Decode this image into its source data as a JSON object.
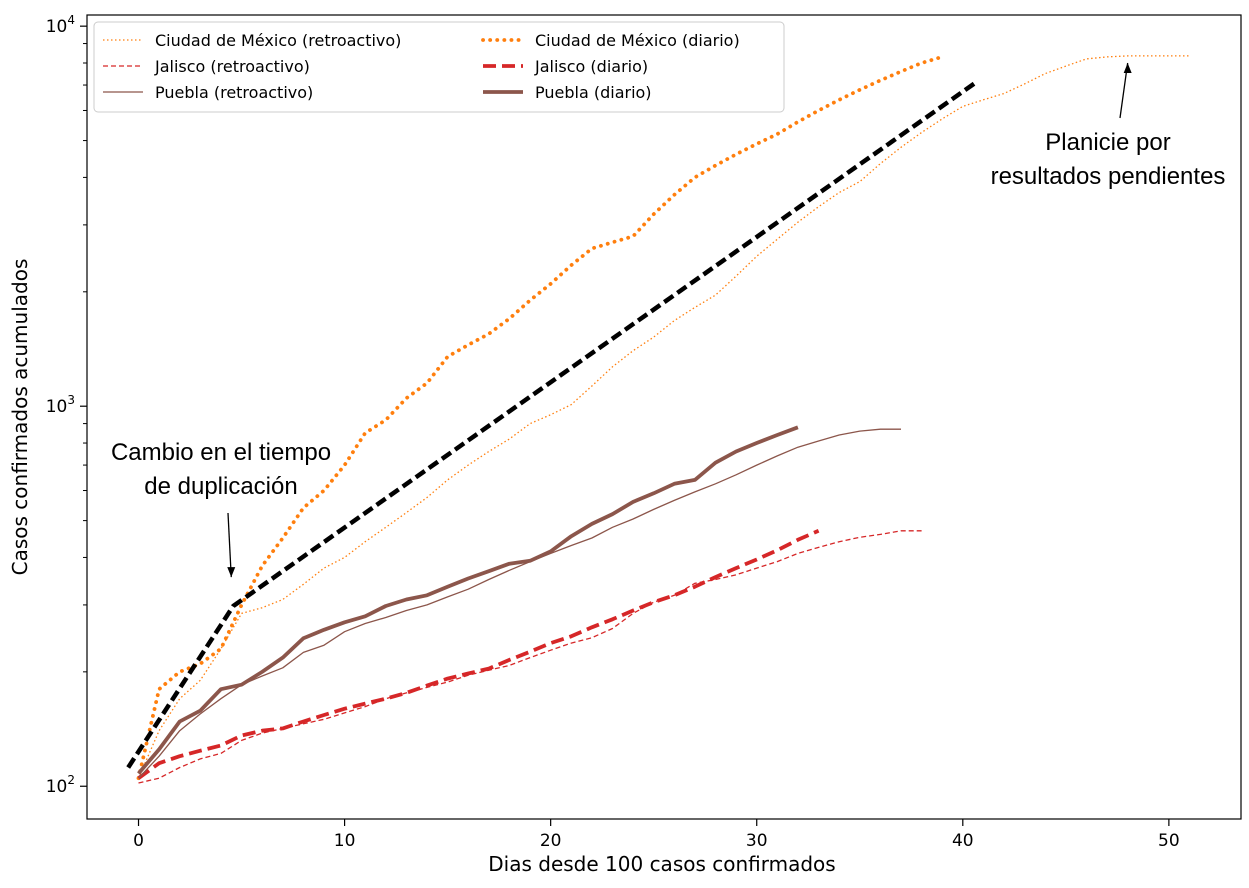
{
  "chart_data": {
    "type": "line",
    "xlabel": "Dias desde 100 casos confirmados",
    "ylabel": "Casos confirmados acumulados",
    "yscale": "log",
    "xlim": [
      -2.5,
      53.5
    ],
    "ylim": [
      82,
      10700
    ],
    "x_ticks": [
      0,
      10,
      20,
      30,
      40,
      50
    ],
    "y_ticks": [
      {
        "value": 100,
        "base": "10",
        "exp": "2"
      },
      {
        "value": 1000,
        "base": "10",
        "exp": "3"
      },
      {
        "value": 10000,
        "base": "10",
        "exp": "4"
      }
    ],
    "legend_position": "top-left",
    "series": [
      {
        "name": "Ciudad de México (retroactivo)",
        "color": "#ff7f0e",
        "style": "dotted",
        "weight": "thin",
        "x": [
          0,
          1,
          2,
          3,
          4,
          5,
          6,
          7,
          8,
          9,
          10,
          11,
          12,
          13,
          14,
          15,
          16,
          17,
          18,
          19,
          20,
          21,
          22,
          23,
          24,
          25,
          26,
          27,
          28,
          29,
          30,
          31,
          32,
          33,
          34,
          35,
          36,
          37,
          38,
          39,
          40,
          41,
          42,
          43,
          44,
          45,
          46,
          47,
          48,
          49,
          50,
          51
        ],
        "y": [
          105,
          140,
          170,
          190,
          230,
          285,
          295,
          310,
          340,
          375,
          400,
          440,
          480,
          525,
          575,
          640,
          700,
          760,
          820,
          900,
          950,
          1010,
          1130,
          1270,
          1400,
          1520,
          1680,
          1820,
          1960,
          2200,
          2480,
          2750,
          3050,
          3350,
          3650,
          3900,
          4350,
          4800,
          5250,
          5700,
          6150,
          6400,
          6650,
          7050,
          7500,
          7850,
          8200,
          8300,
          8350,
          8350,
          8350,
          8350
        ]
      },
      {
        "name": "Ciudad de México (diario)",
        "color": "#ff7f0e",
        "style": "dotted",
        "weight": "thick",
        "x": [
          0,
          1,
          2,
          3,
          4,
          5,
          6,
          7,
          8,
          9,
          10,
          11,
          12,
          13,
          14,
          15,
          16,
          17,
          18,
          19,
          20,
          21,
          22,
          23,
          24,
          25,
          26,
          27,
          28,
          29,
          30,
          31,
          32,
          33,
          34,
          35,
          36,
          37,
          38,
          39
        ],
        "y": [
          105,
          180,
          200,
          210,
          230,
          300,
          380,
          450,
          540,
          600,
          700,
          850,
          920,
          1050,
          1150,
          1350,
          1450,
          1550,
          1700,
          1900,
          2100,
          2350,
          2600,
          2700,
          2800,
          3200,
          3600,
          4000,
          4300,
          4600,
          4900,
          5200,
          5600,
          6000,
          6400,
          6800,
          7200,
          7600,
          8000,
          8300
        ]
      },
      {
        "name": "Jalisco (retroactivo)",
        "color": "#d62728",
        "style": "dashed",
        "weight": "thin",
        "x": [
          0,
          1,
          2,
          3,
          4,
          5,
          6,
          7,
          8,
          9,
          10,
          11,
          12,
          13,
          14,
          15,
          16,
          17,
          18,
          19,
          20,
          21,
          22,
          23,
          24,
          25,
          26,
          27,
          28,
          29,
          30,
          31,
          32,
          33,
          34,
          35,
          36,
          37,
          38
        ],
        "y": [
          102,
          105,
          112,
          118,
          122,
          132,
          138,
          142,
          146,
          150,
          156,
          162,
          170,
          176,
          182,
          188,
          196,
          202,
          208,
          218,
          228,
          238,
          246,
          260,
          285,
          305,
          318,
          342,
          350,
          360,
          375,
          390,
          410,
          425,
          440,
          452,
          460,
          470,
          470
        ]
      },
      {
        "name": "Jalisco (diario)",
        "color": "#d62728",
        "style": "dashed",
        "weight": "thick",
        "x": [
          0,
          1,
          2,
          3,
          4,
          5,
          6,
          7,
          8,
          9,
          10,
          11,
          12,
          13,
          14,
          15,
          16,
          17,
          18,
          19,
          20,
          21,
          22,
          23,
          24,
          25,
          26,
          27,
          28,
          29,
          30,
          31,
          32,
          33
        ],
        "y": [
          105,
          115,
          120,
          124,
          128,
          136,
          140,
          142,
          148,
          154,
          160,
          165,
          170,
          176,
          184,
          192,
          198,
          204,
          215,
          226,
          238,
          248,
          262,
          275,
          290,
          305,
          318,
          335,
          355,
          375,
          395,
          418,
          445,
          470
        ]
      },
      {
        "name": "Puebla (retroactivo)",
        "color": "#8c564b",
        "style": "solid",
        "weight": "thin",
        "x": [
          0,
          1,
          2,
          3,
          4,
          5,
          6,
          7,
          8,
          9,
          10,
          11,
          12,
          13,
          14,
          15,
          16,
          17,
          18,
          19,
          20,
          21,
          22,
          23,
          24,
          25,
          26,
          27,
          28,
          29,
          30,
          31,
          32,
          33,
          34,
          35,
          36,
          37
        ],
        "y": [
          105,
          120,
          140,
          155,
          170,
          185,
          195,
          205,
          225,
          235,
          255,
          268,
          278,
          290,
          300,
          315,
          330,
          350,
          370,
          390,
          410,
          430,
          450,
          480,
          505,
          535,
          565,
          595,
          625,
          660,
          700,
          740,
          780,
          810,
          840,
          860,
          870,
          870
        ]
      },
      {
        "name": "Puebla (diario)",
        "color": "#8c564b",
        "style": "solid",
        "weight": "thick",
        "x": [
          0,
          1,
          2,
          3,
          4,
          5,
          6,
          7,
          8,
          9,
          10,
          11,
          12,
          13,
          14,
          15,
          16,
          17,
          18,
          19,
          20,
          21,
          22,
          23,
          24,
          25,
          26,
          27,
          28,
          29,
          30,
          31,
          32
        ],
        "y": [
          108,
          125,
          148,
          158,
          180,
          185,
          200,
          218,
          245,
          258,
          270,
          280,
          298,
          310,
          318,
          335,
          352,
          368,
          385,
          392,
          415,
          455,
          490,
          520,
          560,
          590,
          625,
          640,
          710,
          760,
          800,
          840,
          880
        ]
      },
      {
        "color": "#000000",
        "style": "dashed",
        "weight": "fit",
        "x": [
          -0.5,
          4.6,
          40.7
        ],
        "y": [
          112,
          298,
          7150
        ]
      }
    ],
    "annotations": [
      {
        "lines": [
          "Cambio en el tiempo",
          "de duplicación"
        ],
        "arrow_to": {
          "x": 4.5,
          "y": 355
        }
      },
      {
        "lines": [
          "Planicie por",
          "resultados pendientes"
        ],
        "arrow_to": {
          "x": 48,
          "y": 8000
        }
      }
    ]
  }
}
